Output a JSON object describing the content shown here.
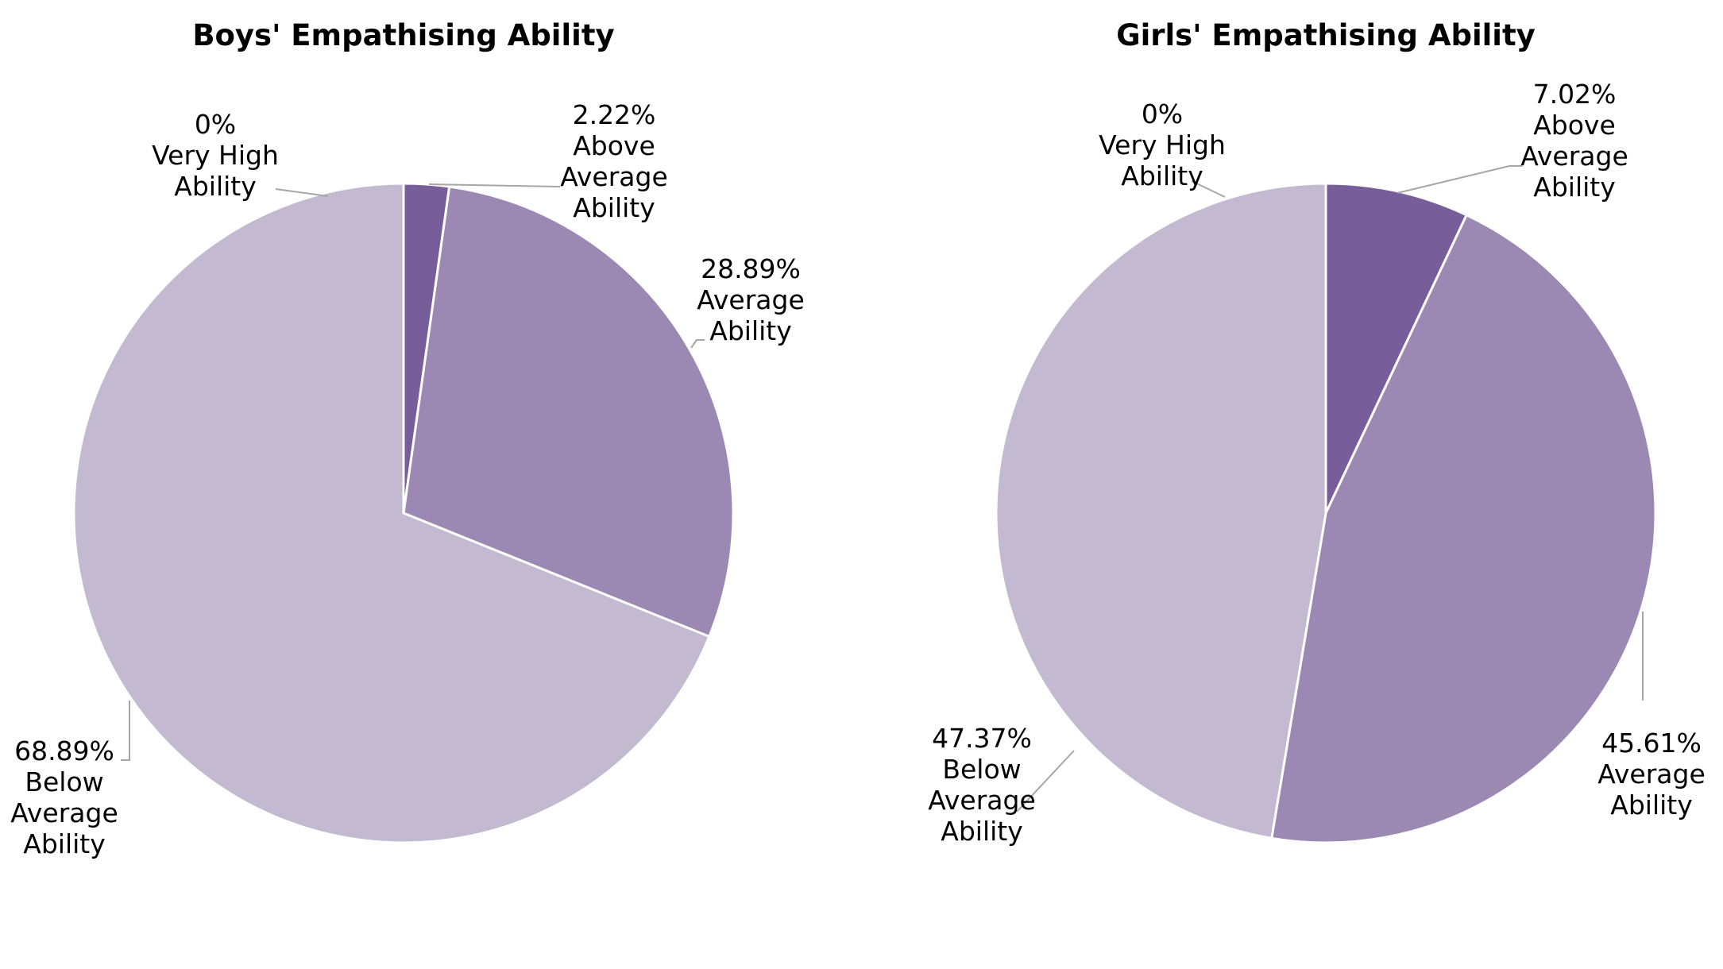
{
  "chart_data": [
    {
      "type": "pie",
      "title": "Boys' Empathising Ability",
      "slices": [
        {
          "label_lines": [
            "Very High",
            "Ability"
          ],
          "value": 0,
          "value_text": "0%",
          "color": "#5b3a87"
        },
        {
          "label_lines": [
            "Above",
            "Average",
            "Ability"
          ],
          "value": 2.22,
          "value_text": "2.22%",
          "color": "#775d99"
        },
        {
          "label_lines": [
            "Average",
            "Ability"
          ],
          "value": 28.89,
          "value_text": "28.89%",
          "color": "#9b89b3"
        },
        {
          "label_lines": [
            "Below",
            "Average",
            "Ability"
          ],
          "value": 68.89,
          "value_text": "68.89%",
          "color": "#c3b9d0"
        }
      ]
    },
    {
      "type": "pie",
      "title": "Girls' Empathising Ability",
      "slices": [
        {
          "label_lines": [
            "Very High",
            "Ability"
          ],
          "value": 0,
          "value_text": "0%",
          "color": "#5b3a87"
        },
        {
          "label_lines": [
            "Above",
            "Average",
            "Ability"
          ],
          "value": 7.02,
          "value_text": "7.02%",
          "color": "#775d99"
        },
        {
          "label_lines": [
            "Average",
            "Ability"
          ],
          "value": 45.61,
          "value_text": "45.61%",
          "color": "#9b89b3"
        },
        {
          "label_lines": [
            "Below",
            "Average",
            "Ability"
          ],
          "value": 47.37,
          "value_text": "47.37%",
          "color": "#c3b9d0"
        }
      ]
    }
  ]
}
